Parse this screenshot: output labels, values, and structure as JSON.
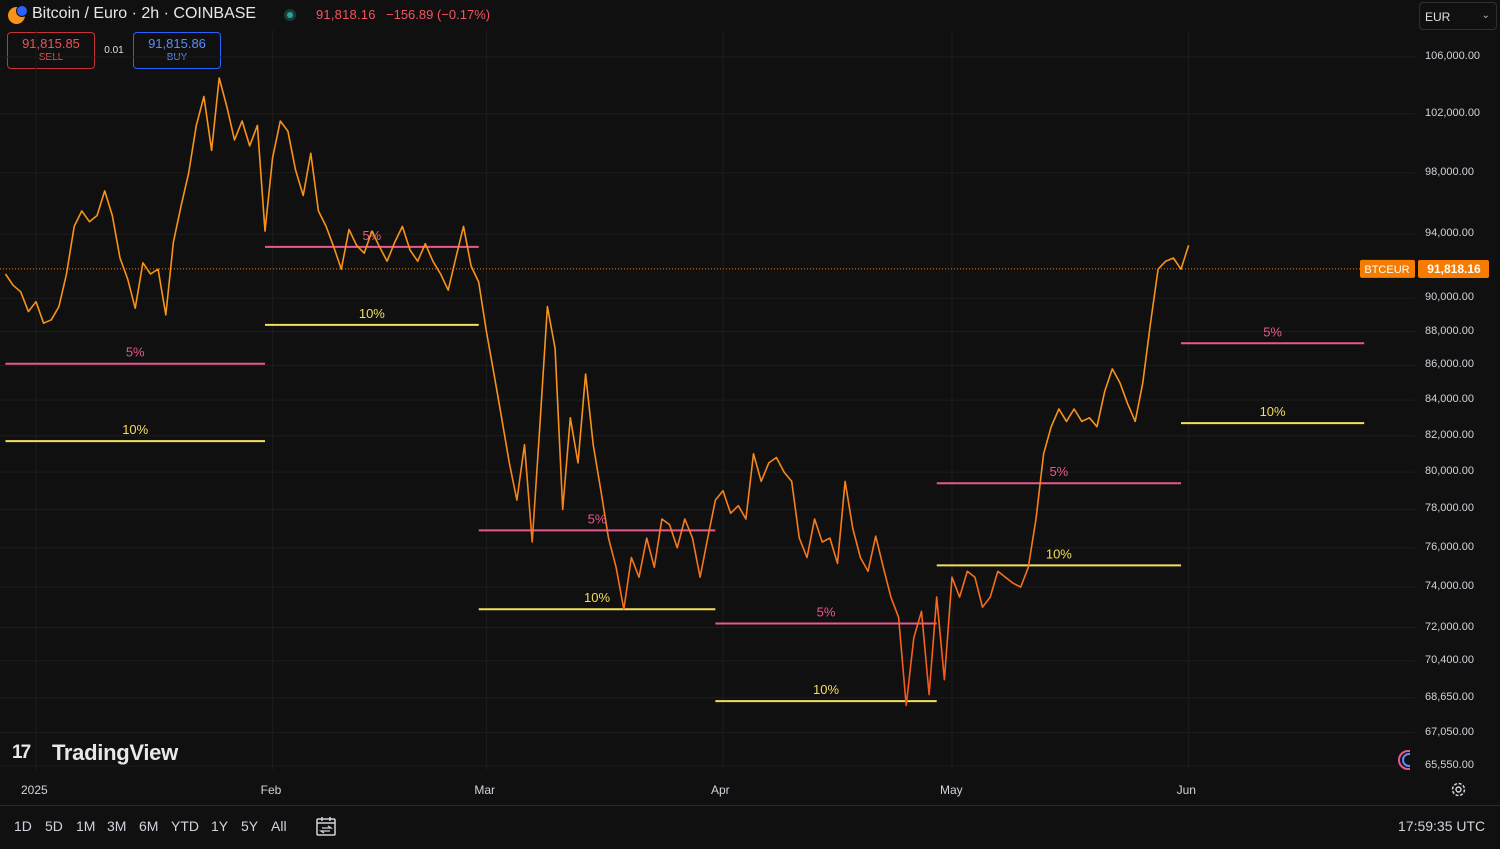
{
  "header": {
    "symbol_title": "Bitcoin / Euro · 2h · COINBASE",
    "last_price": "91,818.16",
    "change": "−156.89 (−0.17%)",
    "currency": "EUR"
  },
  "order": {
    "sell_price": "91,815.85",
    "sell_label": "SELL",
    "spread": "0.01",
    "buy_price": "91,815.86",
    "buy_label": "BUY"
  },
  "price_tag": {
    "symbol": "BTCEUR",
    "value": "91,818.16"
  },
  "logo": {
    "mark": "17",
    "text": "TradingView"
  },
  "range_buttons": [
    "1D",
    "5D",
    "1M",
    "3M",
    "6M",
    "YTD",
    "1Y",
    "5Y",
    "All"
  ],
  "clock": "17:59:35 UTC",
  "icons": {
    "symbol": "bitcoin-euro-icon",
    "live_status": "live-dot-icon",
    "currency_dropdown": "chevron-down-icon",
    "compare": "date-range-icon",
    "settings": "gear-icon",
    "marker": "crescent-marker-icon"
  },
  "colors": {
    "background": "#101010",
    "price_line": "#f7931a",
    "price_line_low": "#f4511e",
    "level_5pct": "#e8578f",
    "level_10pct": "#f3df5c",
    "last_price_tag": "#f57c00",
    "sell": "#ef5350",
    "buy": "#2962ff"
  },
  "chart_data": {
    "type": "line",
    "title": "Bitcoin / Euro · 2h · COINBASE",
    "xlabel": "",
    "ylabel": "",
    "y_axis_position": "right",
    "y_scale": "log",
    "ylim": [
      64800,
      110000
    ],
    "xlim": [
      "2024-12-28",
      "2025-06-24"
    ],
    "grid": true,
    "y_ticks": [
      "106,000.00",
      "102,000.00",
      "98,000.00",
      "94,000.00",
      "90,000.00",
      "88,000.00",
      "86,000.00",
      "84,000.00",
      "82,000.00",
      "80,000.00",
      "78,000.00",
      "76,000.00",
      "74,000.00",
      "72,000.00",
      "70,400.00",
      "68,650.00",
      "67,050.00",
      "65,550.00"
    ],
    "x_ticks": [
      {
        "label": "2025",
        "date": "2025-01-01"
      },
      {
        "label": "Feb",
        "date": "2025-02-01"
      },
      {
        "label": "Mar",
        "date": "2025-03-01"
      },
      {
        "label": "Apr",
        "date": "2025-04-01"
      },
      {
        "label": "May",
        "date": "2025-05-01"
      },
      {
        "label": "Jun",
        "date": "2025-06-01"
      }
    ],
    "last_price": 91818.16,
    "series": [
      {
        "points": [
          [
            "2024-12-28",
            91500
          ],
          [
            "2024-12-29",
            90800
          ],
          [
            "2024-12-30",
            90400
          ],
          [
            "2024-12-31",
            89200
          ],
          [
            "2025-01-01",
            89800
          ],
          [
            "2025-01-02",
            88500
          ],
          [
            "2025-01-03",
            88700
          ],
          [
            "2025-01-04",
            89500
          ],
          [
            "2025-01-05",
            91500
          ],
          [
            "2025-01-06",
            94500
          ],
          [
            "2025-01-07",
            95500
          ],
          [
            "2025-01-08",
            94800
          ],
          [
            "2025-01-09",
            95200
          ],
          [
            "2025-01-10",
            96800
          ],
          [
            "2025-01-11",
            95200
          ],
          [
            "2025-01-12",
            92500
          ],
          [
            "2025-01-13",
            91200
          ],
          [
            "2025-01-14",
            89400
          ],
          [
            "2025-01-15",
            92200
          ],
          [
            "2025-01-16",
            91500
          ],
          [
            "2025-01-17",
            91800
          ],
          [
            "2025-01-18",
            89000
          ],
          [
            "2025-01-19",
            93500
          ],
          [
            "2025-01-20",
            95800
          ],
          [
            "2025-01-21",
            98000
          ],
          [
            "2025-01-22",
            101200
          ],
          [
            "2025-01-23",
            103200
          ],
          [
            "2025-01-24",
            99500
          ],
          [
            "2025-01-25",
            104500
          ],
          [
            "2025-01-26",
            102500
          ],
          [
            "2025-01-27",
            100200
          ],
          [
            "2025-01-28",
            101500
          ],
          [
            "2025-01-29",
            99800
          ],
          [
            "2025-01-30",
            101200
          ],
          [
            "2025-01-31",
            94200
          ],
          [
            "2025-02-01",
            99000
          ],
          [
            "2025-02-02",
            101500
          ],
          [
            "2025-02-03",
            100800
          ],
          [
            "2025-02-04",
            98200
          ],
          [
            "2025-02-05",
            96500
          ],
          [
            "2025-02-06",
            99300
          ],
          [
            "2025-02-07",
            95500
          ],
          [
            "2025-02-08",
            94500
          ],
          [
            "2025-02-09",
            93200
          ],
          [
            "2025-02-10",
            91800
          ],
          [
            "2025-02-11",
            94300
          ],
          [
            "2025-02-12",
            93300
          ],
          [
            "2025-02-13",
            92800
          ],
          [
            "2025-02-14",
            94200
          ],
          [
            "2025-02-15",
            93200
          ],
          [
            "2025-02-16",
            92300
          ],
          [
            "2025-02-17",
            93500
          ],
          [
            "2025-02-18",
            94500
          ],
          [
            "2025-02-19",
            93000
          ],
          [
            "2025-02-20",
            92300
          ],
          [
            "2025-02-21",
            93400
          ],
          [
            "2025-02-22",
            92300
          ],
          [
            "2025-02-23",
            91500
          ],
          [
            "2025-02-24",
            90500
          ],
          [
            "2025-02-25",
            92500
          ],
          [
            "2025-02-26",
            94500
          ],
          [
            "2025-02-27",
            92000
          ],
          [
            "2025-02-28",
            91000
          ],
          [
            "2025-03-01",
            88000
          ],
          [
            "2025-03-02",
            85500
          ],
          [
            "2025-03-03",
            83000
          ],
          [
            "2025-03-04",
            80500
          ],
          [
            "2025-03-05",
            78500
          ],
          [
            "2025-03-06",
            81500
          ],
          [
            "2025-03-07",
            76300
          ],
          [
            "2025-03-08",
            82500
          ],
          [
            "2025-03-09",
            89500
          ],
          [
            "2025-03-10",
            87000
          ],
          [
            "2025-03-11",
            78000
          ],
          [
            "2025-03-12",
            83000
          ],
          [
            "2025-03-13",
            80500
          ],
          [
            "2025-03-14",
            85500
          ],
          [
            "2025-03-15",
            81500
          ],
          [
            "2025-03-16",
            79000
          ],
          [
            "2025-03-17",
            76500
          ],
          [
            "2025-03-18",
            75000
          ],
          [
            "2025-03-19",
            72900
          ],
          [
            "2025-03-20",
            75500
          ],
          [
            "2025-03-21",
            74500
          ],
          [
            "2025-03-22",
            76500
          ],
          [
            "2025-03-23",
            75000
          ],
          [
            "2025-03-24",
            77500
          ],
          [
            "2025-03-25",
            77200
          ],
          [
            "2025-03-26",
            76000
          ],
          [
            "2025-03-27",
            77500
          ],
          [
            "2025-03-28",
            76500
          ],
          [
            "2025-03-29",
            74500
          ],
          [
            "2025-03-30",
            76500
          ],
          [
            "2025-03-31",
            78500
          ],
          [
            "2025-04-01",
            79000
          ],
          [
            "2025-04-02",
            77800
          ],
          [
            "2025-04-03",
            78200
          ],
          [
            "2025-04-04",
            77500
          ],
          [
            "2025-04-05",
            81000
          ],
          [
            "2025-04-06",
            79500
          ],
          [
            "2025-04-07",
            80500
          ],
          [
            "2025-04-08",
            80800
          ],
          [
            "2025-04-09",
            80000
          ],
          [
            "2025-04-10",
            79500
          ],
          [
            "2025-04-11",
            76500
          ],
          [
            "2025-04-12",
            75500
          ],
          [
            "2025-04-13",
            77500
          ],
          [
            "2025-04-14",
            76300
          ],
          [
            "2025-04-15",
            76500
          ],
          [
            "2025-04-16",
            75200
          ],
          [
            "2025-04-17",
            79500
          ],
          [
            "2025-04-18",
            77000
          ],
          [
            "2025-04-19",
            75500
          ],
          [
            "2025-04-20",
            74800
          ],
          [
            "2025-04-21",
            76600
          ],
          [
            "2025-04-22",
            75000
          ],
          [
            "2025-04-23",
            73500
          ],
          [
            "2025-04-24",
            72500
          ],
          [
            "2025-04-25",
            68300
          ],
          [
            "2025-04-26",
            71500
          ],
          [
            "2025-04-27",
            72800
          ],
          [
            "2025-04-28",
            68800
          ],
          [
            "2025-04-29",
            73500
          ],
          [
            "2025-04-30",
            69500
          ],
          [
            "2025-05-01",
            74500
          ],
          [
            "2025-05-02",
            73500
          ],
          [
            "2025-05-03",
            74800
          ],
          [
            "2025-05-04",
            74500
          ],
          [
            "2025-05-05",
            73000
          ],
          [
            "2025-05-06",
            73500
          ],
          [
            "2025-05-07",
            74800
          ],
          [
            "2025-05-08",
            74500
          ],
          [
            "2025-05-09",
            74200
          ],
          [
            "2025-05-10",
            74000
          ],
          [
            "2025-05-11",
            75000
          ],
          [
            "2025-05-12",
            77500
          ],
          [
            "2025-05-13",
            81000
          ],
          [
            "2025-05-14",
            82500
          ],
          [
            "2025-05-15",
            83500
          ],
          [
            "2025-05-16",
            82800
          ],
          [
            "2025-05-17",
            83500
          ],
          [
            "2025-05-18",
            82800
          ],
          [
            "2025-05-19",
            83000
          ],
          [
            "2025-05-20",
            82500
          ],
          [
            "2025-05-21",
            84500
          ],
          [
            "2025-05-22",
            85800
          ],
          [
            "2025-05-23",
            85000
          ],
          [
            "2025-05-24",
            83800
          ],
          [
            "2025-05-25",
            82800
          ],
          [
            "2025-05-26",
            85000
          ],
          [
            "2025-05-27",
            88500
          ],
          [
            "2025-05-28",
            91800
          ],
          [
            "2025-05-29",
            92300
          ],
          [
            "2025-05-30",
            92500
          ],
          [
            "2025-05-31",
            91800
          ],
          [
            "2025-06-01",
            93300
          ]
        ]
      }
    ],
    "levels": [
      {
        "label": "5%",
        "value": 86100,
        "from": "2024-12-28",
        "to": "2025-01-31"
      },
      {
        "label": "10%",
        "value": 81700,
        "from": "2024-12-28",
        "to": "2025-01-31"
      },
      {
        "label": "5%",
        "value": 93200,
        "from": "2025-01-31",
        "to": "2025-02-28"
      },
      {
        "label": "10%",
        "value": 88400,
        "from": "2025-01-31",
        "to": "2025-02-28"
      },
      {
        "label": "5%",
        "value": 76900,
        "from": "2025-02-28",
        "to": "2025-03-31"
      },
      {
        "label": "10%",
        "value": 72900,
        "from": "2025-02-28",
        "to": "2025-03-31"
      },
      {
        "label": "5%",
        "value": 72200,
        "from": "2025-03-31",
        "to": "2025-04-29"
      },
      {
        "label": "10%",
        "value": 68500,
        "from": "2025-03-31",
        "to": "2025-04-29"
      },
      {
        "label": "5%",
        "value": 79400,
        "from": "2025-04-29",
        "to": "2025-05-31"
      },
      {
        "label": "10%",
        "value": 75100,
        "from": "2025-04-29",
        "to": "2025-05-31"
      },
      {
        "label": "5%",
        "value": 87300,
        "from": "2025-05-31",
        "to": "2025-06-24"
      },
      {
        "label": "10%",
        "value": 82700,
        "from": "2025-05-31",
        "to": "2025-06-24"
      }
    ]
  }
}
